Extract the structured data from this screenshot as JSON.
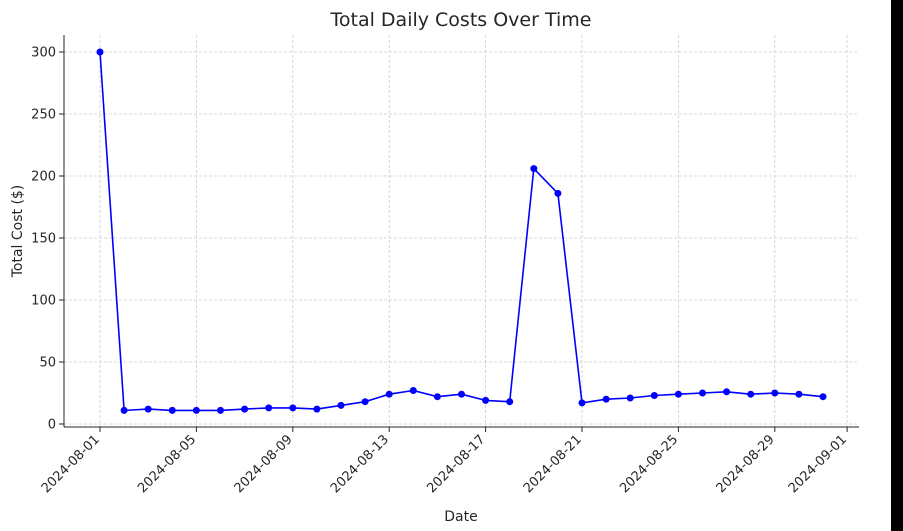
{
  "chart_data": {
    "type": "line",
    "title": "Total Daily Costs Over Time",
    "xlabel": "Date",
    "ylabel": "Total Cost ($)",
    "grid": true,
    "line_color": "#0000ff",
    "ylim": [
      0,
      310
    ],
    "yticks": [
      0,
      50,
      100,
      150,
      200,
      250,
      300
    ],
    "xticks": [
      "2024-08-01",
      "2024-08-05",
      "2024-08-09",
      "2024-08-13",
      "2024-08-17",
      "2024-08-21",
      "2024-08-25",
      "2024-08-29",
      "2024-09-01"
    ],
    "x": [
      "2024-08-01",
      "2024-08-02",
      "2024-08-03",
      "2024-08-04",
      "2024-08-05",
      "2024-08-06",
      "2024-08-07",
      "2024-08-08",
      "2024-08-09",
      "2024-08-10",
      "2024-08-11",
      "2024-08-12",
      "2024-08-13",
      "2024-08-14",
      "2024-08-15",
      "2024-08-16",
      "2024-08-17",
      "2024-08-18",
      "2024-08-19",
      "2024-08-20",
      "2024-08-21",
      "2024-08-22",
      "2024-08-23",
      "2024-08-24",
      "2024-08-25",
      "2024-08-26",
      "2024-08-27",
      "2024-08-28",
      "2024-08-29",
      "2024-08-30",
      "2024-08-31"
    ],
    "series": [
      {
        "name": "",
        "values": [
          300,
          11,
          12,
          11,
          11,
          11,
          12,
          13,
          13,
          12,
          15,
          18,
          24,
          27,
          22,
          24,
          19,
          18,
          206,
          186,
          17,
          20,
          21,
          23,
          24,
          25,
          26,
          24,
          25,
          24,
          22
        ]
      }
    ]
  }
}
